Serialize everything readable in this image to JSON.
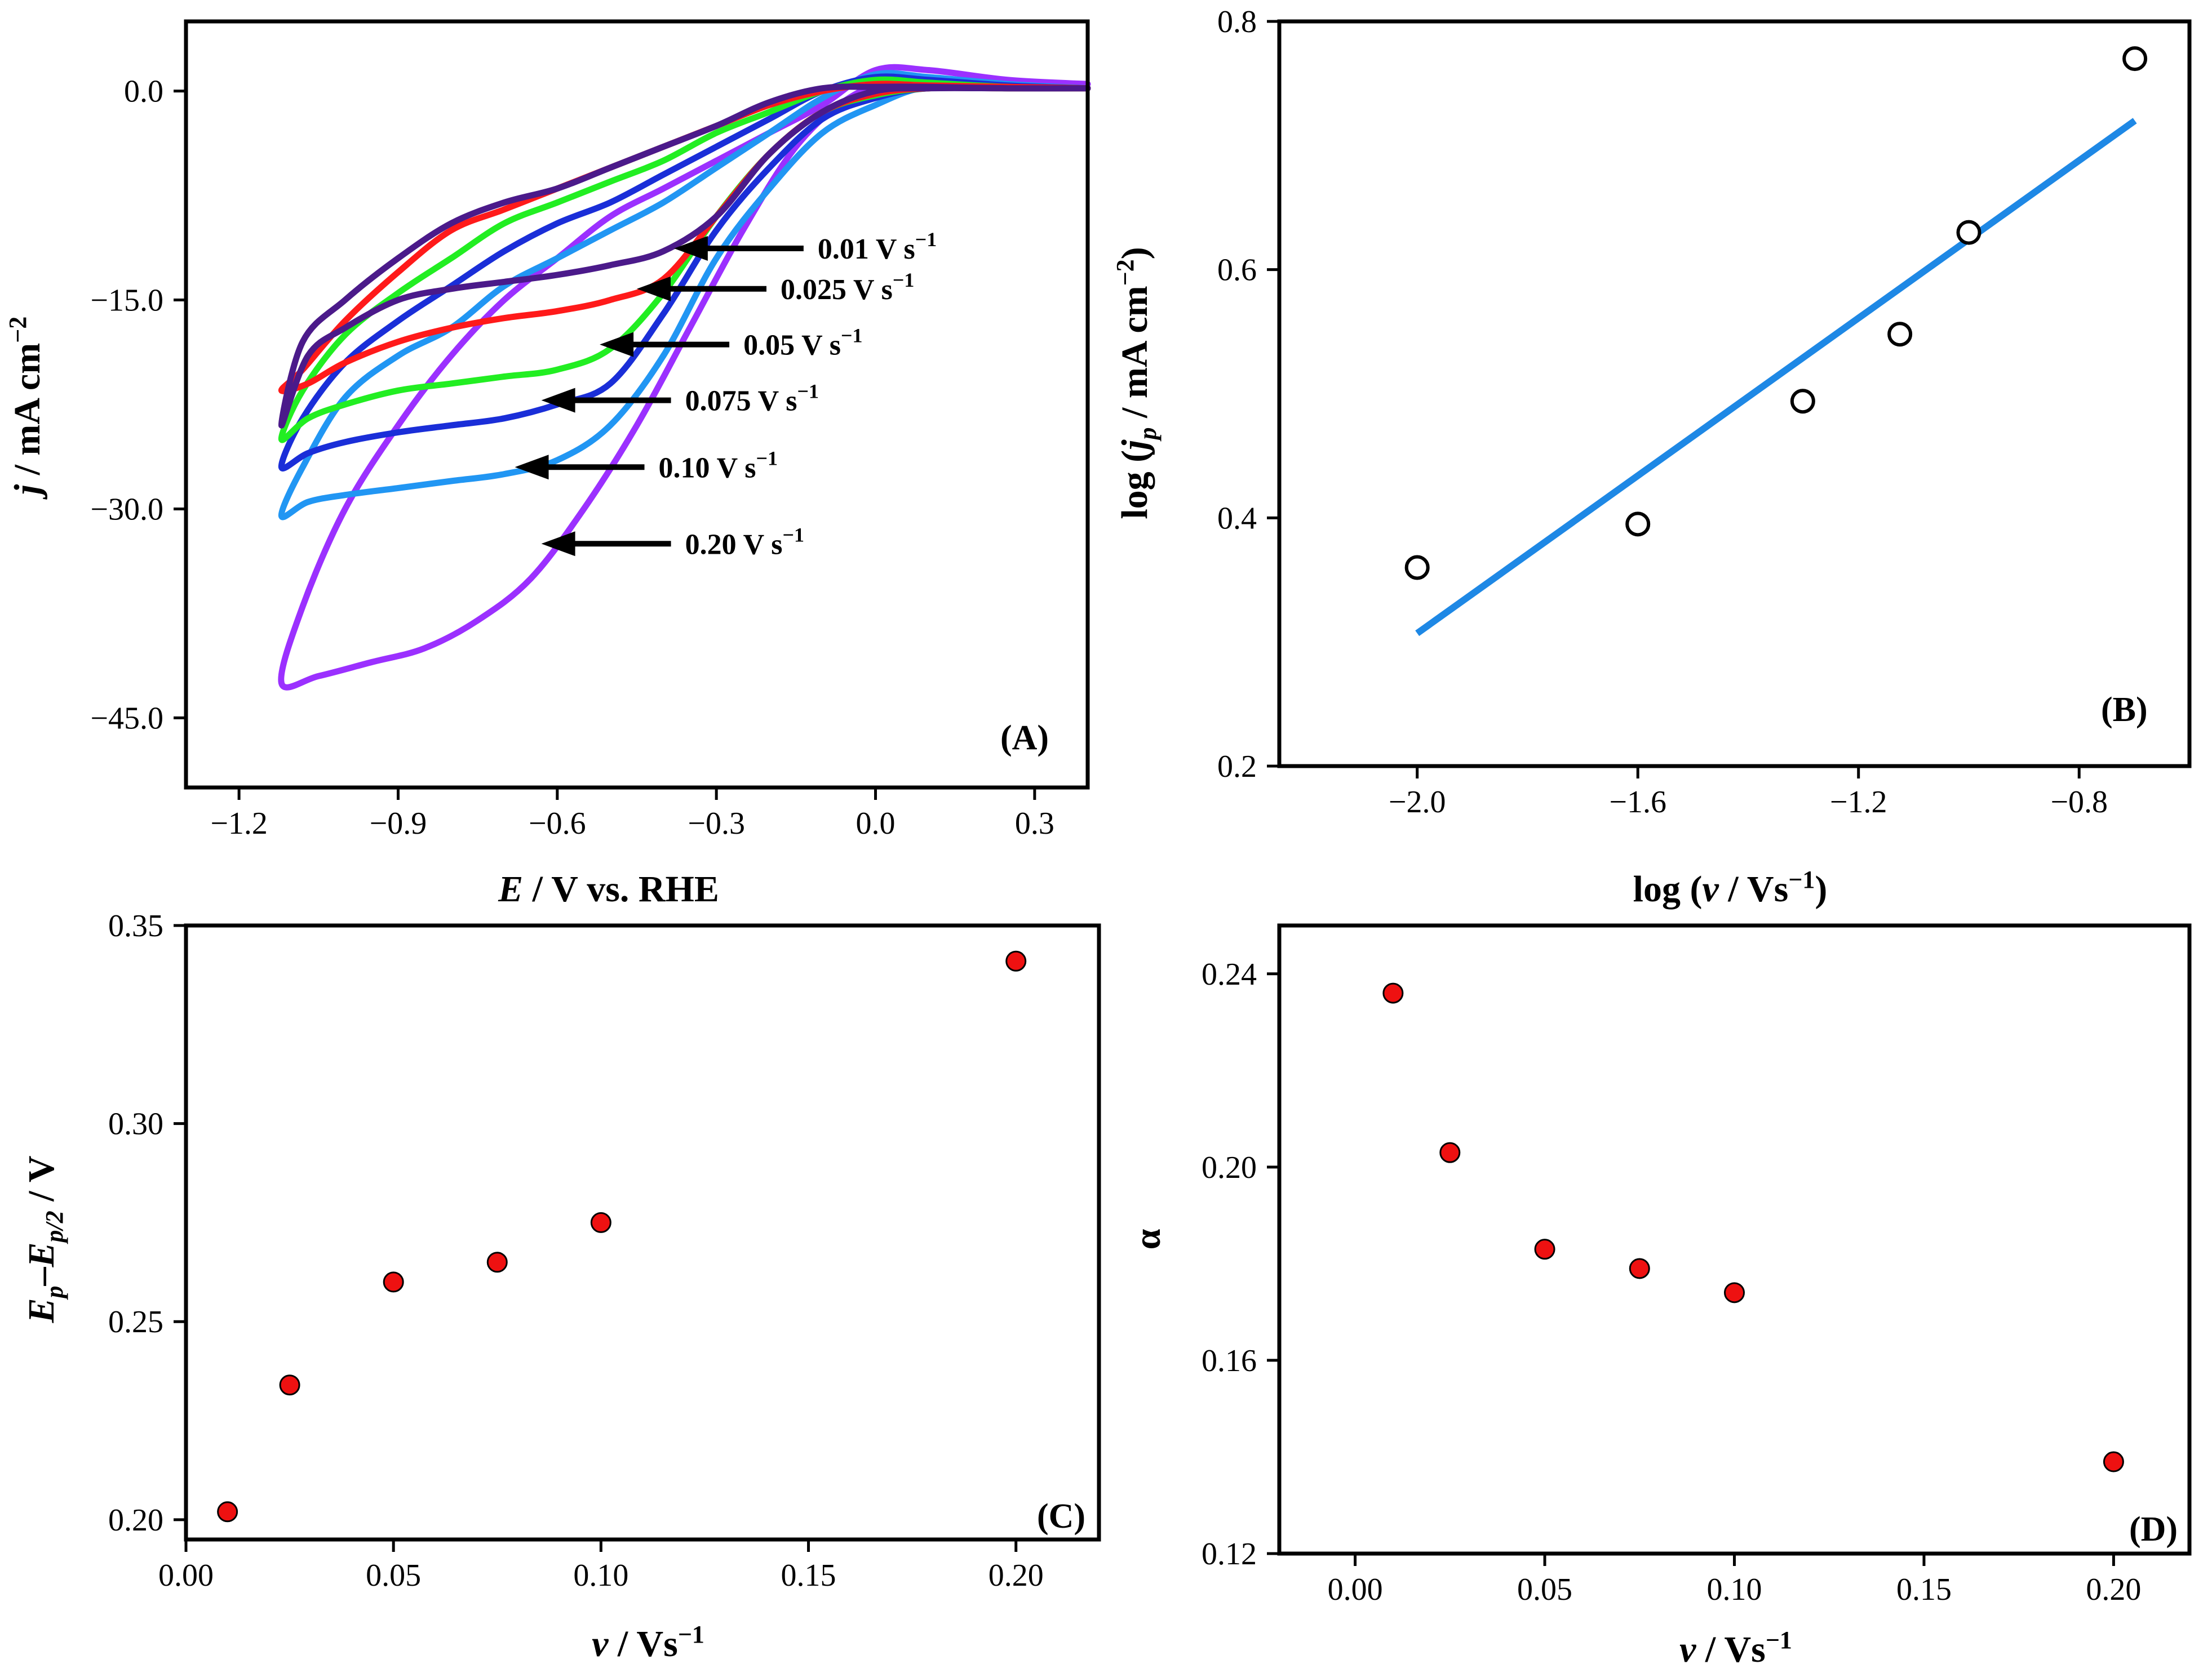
{
  "chart_data": [
    {
      "id": "A",
      "type": "line",
      "panel_label": "(A)",
      "xlabel_italic": "E",
      "xlabel_rest": " / V vs. RHE",
      "ylabel_italic": "j",
      "ylabel_rest": " / mA cm",
      "ylabel_sup": "−2",
      "xlim": [
        -1.3,
        0.4
      ],
      "ylim": [
        -50,
        5
      ],
      "xticks": [
        -1.2,
        -0.9,
        -0.6,
        -0.3,
        0.0,
        0.3
      ],
      "xtick_labels": [
        "−1.2",
        "−0.9",
        "−0.6",
        "−0.3",
        "0.0",
        "0.3"
      ],
      "yticks": [
        0,
        -15,
        -30,
        -45
      ],
      "ytick_labels": [
        "0.0",
        "−15.0",
        "−30.0",
        "−45.0"
      ],
      "series": [
        {
          "name": "0.20 V s",
          "sup": "−1",
          "color": "#9b30ff",
          "fwd_x": [
            0.4,
            0.25,
            0.15,
            0.05,
            -0.05,
            -0.15,
            -0.25,
            -0.35,
            -0.45,
            -0.55,
            -0.65,
            -0.75,
            -0.85,
            -0.95,
            -1.05,
            -1.12
          ],
          "fwd_y": [
            0.5,
            0.5,
            0.8,
            0.9,
            -0.5,
            -4,
            -10,
            -17,
            -24,
            -30,
            -35,
            -38,
            -40,
            -41,
            -42,
            -42.5
          ],
          "rev_x": [
            -1.12,
            -1.08,
            -1.0,
            -0.9,
            -0.8,
            -0.7,
            -0.6,
            -0.5,
            -0.4,
            -0.3,
            -0.2,
            -0.1,
            0.0,
            0.1,
            0.25,
            0.4
          ],
          "rev_y": [
            -42.5,
            -37,
            -30,
            -24,
            -19,
            -15,
            -12,
            -9,
            -7,
            -5,
            -3,
            -1,
            1.5,
            1.5,
            0.8,
            0.5
          ]
        },
        {
          "name": "0.10 V s",
          "sup": "−1",
          "color": "#2196f3",
          "fwd_x": [
            0.4,
            0.25,
            0.1,
            0.0,
            -0.1,
            -0.2,
            -0.3,
            -0.4,
            -0.5,
            -0.6,
            -0.7,
            -0.8,
            -0.9,
            -1.0,
            -1.07,
            -1.12
          ],
          "fwd_y": [
            0.2,
            0.2,
            0.3,
            -1,
            -3,
            -7,
            -12,
            -19,
            -24,
            -26.5,
            -27.5,
            -28,
            -28.5,
            -29,
            -29.5,
            -30.5
          ],
          "rev_x": [
            -1.12,
            -1.08,
            -1.0,
            -0.9,
            -0.8,
            -0.7,
            -0.6,
            -0.5,
            -0.4,
            -0.3,
            -0.2,
            -0.1,
            0.0,
            0.1,
            0.25,
            0.4
          ],
          "rev_y": [
            -30.5,
            -27,
            -22,
            -19,
            -17,
            -14,
            -12,
            -10,
            -8,
            -5.5,
            -3,
            -0.5,
            1.2,
            1.0,
            0.5,
            0.2
          ]
        },
        {
          "name": "0.075 V s",
          "sup": "−1",
          "color": "#1a2ed8",
          "fwd_x": [
            0.4,
            0.25,
            0.1,
            0.0,
            -0.1,
            -0.2,
            -0.3,
            -0.4,
            -0.5,
            -0.6,
            -0.7,
            -0.8,
            -0.9,
            -1.0,
            -1.07,
            -1.12
          ],
          "fwd_y": [
            0.2,
            0.2,
            0.2,
            -0.5,
            -2,
            -5.5,
            -10,
            -16,
            -21,
            -22.5,
            -23.5,
            -24,
            -24.5,
            -25.2,
            -26,
            -27
          ],
          "rev_x": [
            -1.12,
            -1.08,
            -1.0,
            -0.9,
            -0.8,
            -0.7,
            -0.6,
            -0.5,
            -0.4,
            -0.3,
            -0.2,
            -0.1,
            0.0,
            0.1,
            0.25,
            0.4
          ],
          "rev_y": [
            -27,
            -23.5,
            -19.5,
            -16.5,
            -14,
            -11.5,
            -9.5,
            -8,
            -6,
            -4,
            -2,
            0,
            1.0,
            0.8,
            0.4,
            0.2
          ]
        },
        {
          "name": "0.05 V s",
          "sup": "−1",
          "color": "#22ee22",
          "fwd_x": [
            0.4,
            0.25,
            0.1,
            0.0,
            -0.1,
            -0.2,
            -0.3,
            -0.4,
            -0.5,
            -0.6,
            -0.7,
            -0.8,
            -0.9,
            -1.0,
            -1.07,
            -1.12
          ],
          "fwd_y": [
            0.2,
            0.2,
            0.2,
            -0.3,
            -1.5,
            -4.5,
            -9,
            -14.5,
            -18.5,
            -20,
            -20.5,
            -21,
            -21.5,
            -22.5,
            -23.5,
            -25
          ],
          "rev_x": [
            -1.12,
            -1.08,
            -1.0,
            -0.9,
            -0.8,
            -0.7,
            -0.6,
            -0.5,
            -0.4,
            -0.3,
            -0.2,
            -0.1,
            0.0,
            0.1,
            0.25,
            0.4
          ],
          "rev_y": [
            -25,
            -21.5,
            -17.5,
            -14.5,
            -12,
            -9.5,
            -8,
            -6.5,
            -5,
            -3,
            -1.5,
            0,
            0.8,
            0.6,
            0.3,
            0.2
          ]
        },
        {
          "name": "0.025 V s",
          "sup": "−1",
          "color": "#ff1a1a",
          "fwd_x": [
            0.4,
            0.25,
            0.1,
            0.0,
            -0.1,
            -0.2,
            -0.3,
            -0.4,
            -0.5,
            -0.6,
            -0.7,
            -0.8,
            -0.9,
            -1.0,
            -1.07,
            -1.12
          ],
          "fwd_y": [
            0.2,
            0.2,
            0.2,
            -0.2,
            -1.5,
            -4.5,
            -9,
            -13.5,
            -15,
            -15.8,
            -16.3,
            -17,
            -18,
            -19.5,
            -21,
            -21.5
          ],
          "rev_x": [
            -1.12,
            -1.08,
            -1.0,
            -0.9,
            -0.8,
            -0.7,
            -0.6,
            -0.5,
            -0.4,
            -0.3,
            -0.2,
            -0.1,
            0.0,
            0.1,
            0.25,
            0.4
          ],
          "rev_y": [
            -21.5,
            -20,
            -16.5,
            -13,
            -10,
            -8.5,
            -7,
            -5.5,
            -4,
            -2.5,
            -1,
            0,
            0.5,
            0.4,
            0.3,
            0.2
          ]
        },
        {
          "name": "0.01 V s",
          "sup": "−1",
          "color": "#4b1a8a",
          "fwd_x": [
            0.4,
            0.25,
            0.1,
            0.0,
            -0.1,
            -0.2,
            -0.3,
            -0.4,
            -0.5,
            -0.6,
            -0.7,
            -0.8,
            -0.9,
            -1.0,
            -1.07,
            -1.12
          ],
          "fwd_y": [
            0.2,
            0.2,
            0.2,
            0,
            -1.5,
            -4.5,
            -9,
            -11.5,
            -12.5,
            -13.2,
            -13.7,
            -14.2,
            -15,
            -17,
            -19,
            -24
          ],
          "rev_x": [
            -1.12,
            -1.08,
            -1.0,
            -0.9,
            -0.8,
            -0.7,
            -0.6,
            -0.5,
            -0.4,
            -0.3,
            -0.2,
            -0.1,
            0.0,
            0.1,
            0.25,
            0.4
          ],
          "rev_y": [
            -24,
            -18,
            -15,
            -12,
            -9.5,
            -8,
            -7,
            -5.5,
            -4,
            -2.5,
            -0.8,
            0.2,
            0.3,
            0.3,
            0.2,
            0.2
          ]
        }
      ],
      "annotations": [
        {
          "label": "0.01 V s",
          "sup": "−1",
          "tip_x": -0.38,
          "tip_y": -11.3
        },
        {
          "label": "0.025 V s",
          "sup": "−1",
          "tip_x": -0.45,
          "tip_y": -14.2
        },
        {
          "label": "0.05 V s",
          "sup": "−1",
          "tip_x": -0.52,
          "tip_y": -18.2
        },
        {
          "label": "0.075 V s",
          "sup": "−1",
          "tip_x": -0.63,
          "tip_y": -22.2
        },
        {
          "label": "0.10 V s",
          "sup": "−1",
          "tip_x": -0.68,
          "tip_y": -27.0
        },
        {
          "label": "0.20 V s",
          "sup": "−1",
          "tip_x": -0.63,
          "tip_y": -32.5
        }
      ]
    },
    {
      "id": "B",
      "type": "scatter",
      "panel_label": "(B)",
      "xlabel_pre": "log (",
      "xlabel_italic": "v",
      "xlabel_mid": " / Vs",
      "xlabel_sup": "−1",
      "xlabel_post": ")",
      "ylabel_pre": "log (",
      "ylabel_italic": "j",
      "ylabel_sub": "p",
      "ylabel_mid": " / mA cm",
      "ylabel_sup": "−2",
      "ylabel_post": ")",
      "xlim": [
        -2.25,
        -0.6
      ],
      "ylim": [
        0.2,
        0.8
      ],
      "xticks": [
        -2.0,
        -1.6,
        -1.2,
        -0.8
      ],
      "xtick_labels": [
        "−2.0",
        "−1.6",
        "−1.2",
        "−0.8"
      ],
      "yticks": [
        0.2,
        0.4,
        0.6,
        0.8
      ],
      "ytick_labels": [
        "0.2",
        "0.4",
        "0.6",
        "0.8"
      ],
      "x": [
        -2.0,
        -1.6,
        -1.301,
        -1.125,
        -1.0,
        -0.699
      ],
      "y": [
        0.36,
        0.395,
        0.494,
        0.548,
        0.63,
        0.77
      ],
      "fit_line": {
        "x": [
          -2.0,
          -0.699
        ],
        "y": [
          0.307,
          0.72
        ],
        "color": "#1e88e5"
      }
    },
    {
      "id": "C",
      "type": "scatter",
      "panel_label": "(C)",
      "xlabel_italic": "v",
      "xlabel_rest": " / Vs",
      "xlabel_sup": "−1",
      "ylabel_E1": "E",
      "ylabel_sub1": "p",
      "ylabel_dash": "–",
      "ylabel_E2": "E",
      "ylabel_sub2": "p/2",
      "ylabel_rest": " / V",
      "xlim": [
        0.0,
        0.22
      ],
      "ylim": [
        0.195,
        0.35
      ],
      "xticks": [
        0.0,
        0.05,
        0.1,
        0.15,
        0.2
      ],
      "xtick_labels": [
        "0.00",
        "0.05",
        "0.10",
        "0.15",
        "0.20"
      ],
      "yticks": [
        0.2,
        0.25,
        0.3,
        0.35
      ],
      "ytick_labels": [
        "0.20",
        "0.25",
        "0.30",
        "0.35"
      ],
      "x": [
        0.01,
        0.025,
        0.05,
        0.075,
        0.1,
        0.2
      ],
      "y": [
        0.202,
        0.234,
        0.26,
        0.265,
        0.275,
        0.341
      ],
      "marker_color": "#ee1111"
    },
    {
      "id": "D",
      "type": "scatter",
      "panel_label": "(D)",
      "xlabel_italic": "v",
      "xlabel_rest": " / Vs",
      "xlabel_sup": "−1",
      "ylabel": "α",
      "xlim": [
        -0.02,
        0.22
      ],
      "ylim": [
        0.12,
        0.25
      ],
      "xticks": [
        0.0,
        0.05,
        0.1,
        0.15,
        0.2
      ],
      "xtick_labels": [
        "0.00",
        "0.05",
        "0.10",
        "0.15",
        "0.20"
      ],
      "yticks": [
        0.12,
        0.16,
        0.2,
        0.24
      ],
      "ytick_labels": [
        "0.12",
        "0.16",
        "0.20",
        "0.24"
      ],
      "x": [
        0.01,
        0.025,
        0.05,
        0.075,
        0.1,
        0.2
      ],
      "y": [
        0.236,
        0.203,
        0.183,
        0.179,
        0.174,
        0.139
      ],
      "marker_color": "#ee1111"
    }
  ]
}
